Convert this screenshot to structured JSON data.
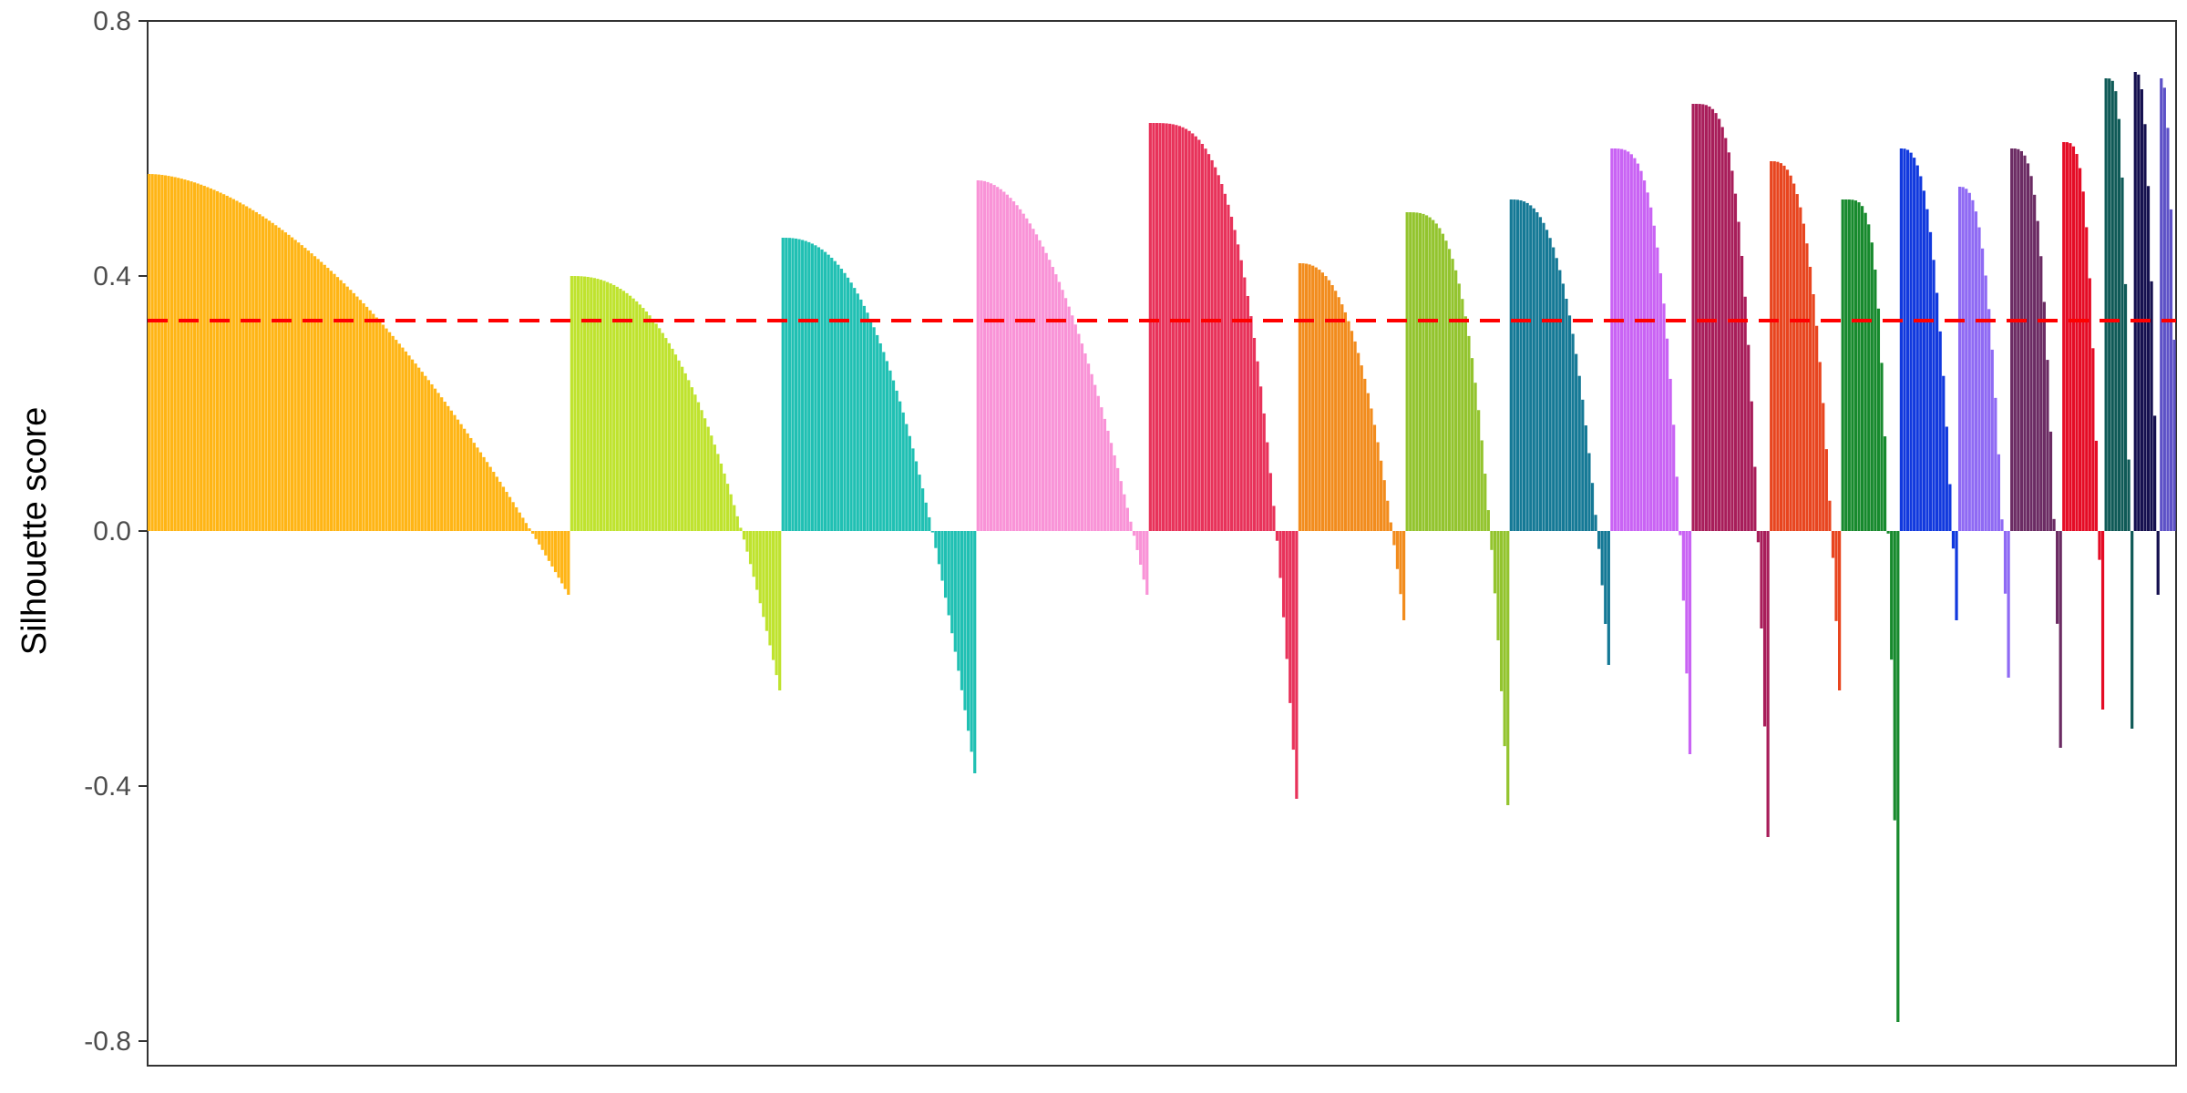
{
  "chart_data": {
    "type": "bar",
    "title": "",
    "xlabel": "",
    "ylabel": "Silhouette score",
    "ylim": [
      -0.8,
      0.8
    ],
    "yticks": [
      -0.8,
      -0.4,
      0.0,
      0.4,
      0.8
    ],
    "ytick_labels": [
      "-0.8",
      "-0.4",
      "0.0",
      "0.4",
      "0.8"
    ],
    "grid": false,
    "reference_line": {
      "y": 0.33,
      "style": "dashed",
      "color": "#ff0000"
    },
    "series": [
      {
        "color": "#ffb515",
        "n": 130,
        "max": 0.56,
        "min": -0.1,
        "k": 0.6
      },
      {
        "color": "#bfe32e",
        "n": 65,
        "max": 0.4,
        "min": -0.25,
        "k": 1.0
      },
      {
        "color": "#20c0b3",
        "n": 60,
        "max": 0.46,
        "min": -0.38,
        "k": 1.0
      },
      {
        "color": "#f993d7",
        "n": 53,
        "max": 0.55,
        "min": -0.1,
        "k": 0.7
      },
      {
        "color": "#e8325a",
        "n": 46,
        "max": 0.64,
        "min": -0.42,
        "k": 1.6
      },
      {
        "color": "#f28c1d",
        "n": 33,
        "max": 0.42,
        "min": -0.14,
        "k": 1.0
      },
      {
        "color": "#93c42e",
        "n": 32,
        "max": 0.5,
        "min": -0.43,
        "k": 1.5
      },
      {
        "color": "#157996",
        "n": 31,
        "max": 0.52,
        "min": -0.21,
        "k": 1.2
      },
      {
        "color": "#c963f4",
        "n": 25,
        "max": 0.6,
        "min": -0.35,
        "k": 1.6
      },
      {
        "color": "#a81d5a",
        "n": 24,
        "max": 0.67,
        "min": -0.48,
        "k": 1.8
      },
      {
        "color": "#e8451f",
        "n": 22,
        "max": 0.58,
        "min": -0.25,
        "k": 1.3
      },
      {
        "color": "#178a2d",
        "n": 18,
        "max": 0.52,
        "min": -0.77,
        "k": 2.4
      },
      {
        "color": "#1139de",
        "n": 18,
        "max": 0.6,
        "min": -0.14,
        "k": 1.2
      },
      {
        "color": "#8f6af4",
        "n": 16,
        "max": 0.54,
        "min": -0.23,
        "k": 1.2
      },
      {
        "color": "#6b2b63",
        "n": 16,
        "max": 0.6,
        "min": -0.34,
        "k": 1.6
      },
      {
        "color": "#e50b25",
        "n": 13,
        "max": 0.61,
        "min": -0.28,
        "k": 1.7
      },
      {
        "color": "#0f5a57",
        "n": 9,
        "max": 0.71,
        "min": -0.31,
        "k": 2.0
      },
      {
        "color": "#15104f",
        "n": 8,
        "max": 0.72,
        "min": -0.1,
        "k": 1.2
      },
      {
        "color": "#5d51c7",
        "n": 5,
        "max": 0.71,
        "min": 0.3,
        "k": 1.0
      }
    ]
  }
}
